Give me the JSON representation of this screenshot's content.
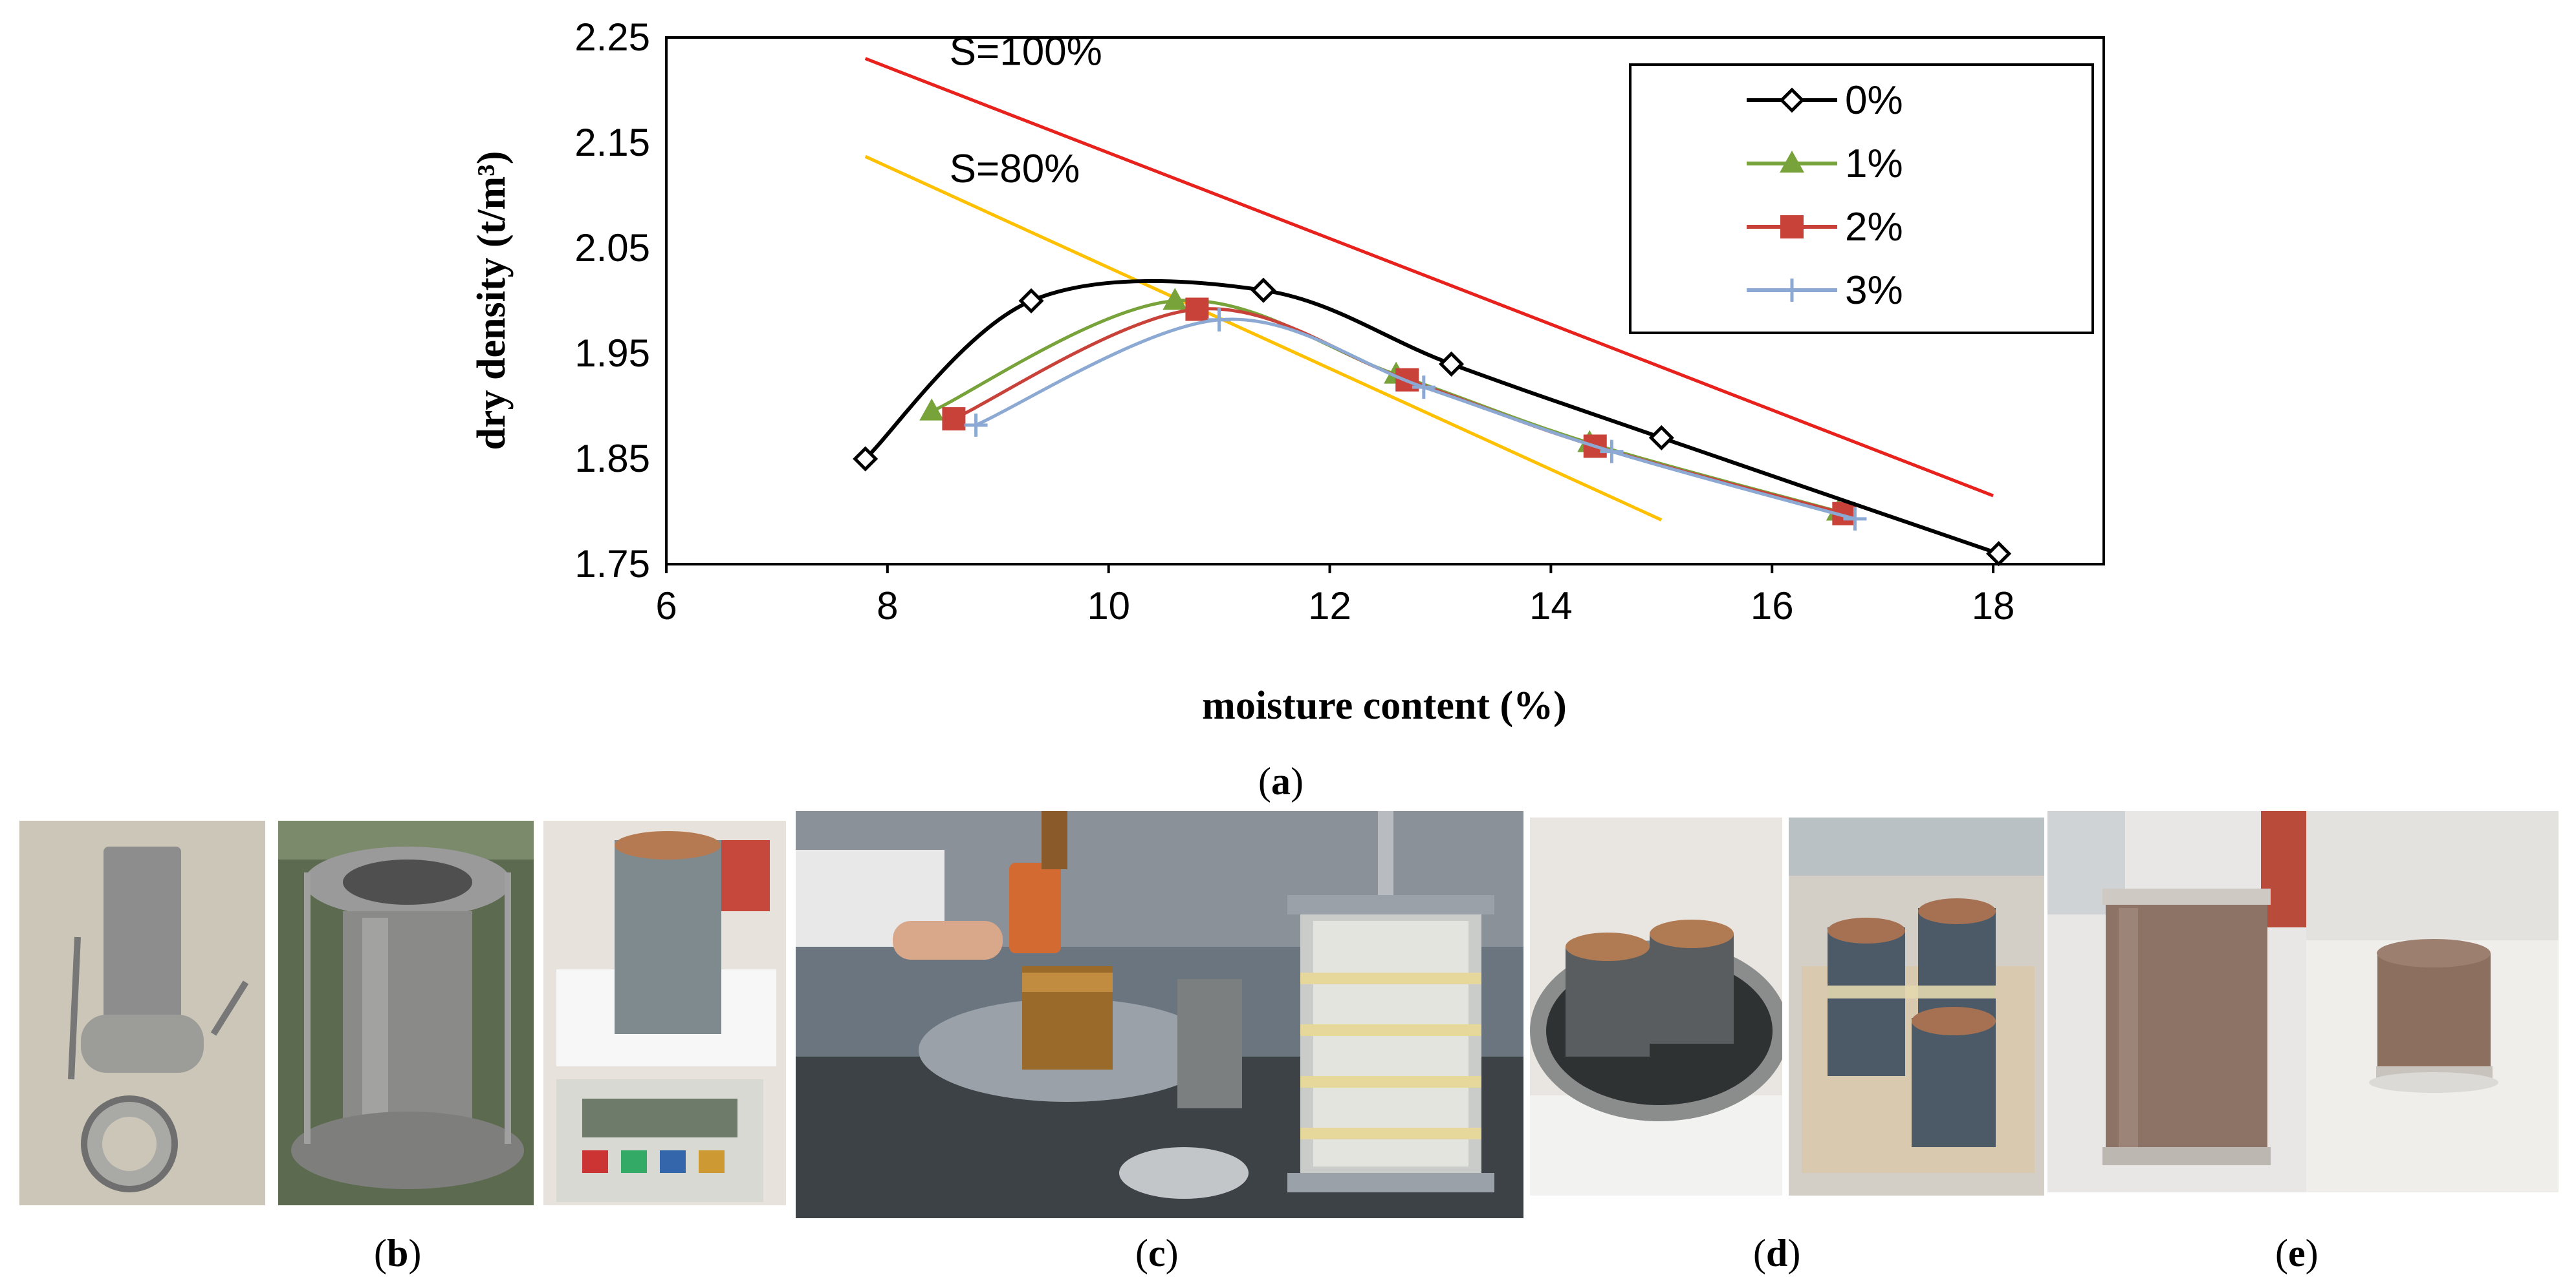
{
  "chart_data": {
    "type": "line",
    "xlabel": "moisture content (%)",
    "ylabel": "dry density (t/m³)",
    "xlim": [
      6,
      19
    ],
    "ylim": [
      1.75,
      2.25
    ],
    "xticks": [
      6,
      8,
      10,
      12,
      14,
      16,
      18
    ],
    "yticks": [
      1.75,
      1.85,
      1.95,
      2.05,
      2.15,
      2.25
    ],
    "legend_position": "top-right",
    "series": [
      {
        "name": "0%",
        "color": "#000000",
        "marker": "diamond",
        "points": [
          [
            7.8,
            1.85
          ],
          [
            9.3,
            2.0
          ],
          [
            11.4,
            2.01
          ],
          [
            13.1,
            1.94
          ],
          [
            15.0,
            1.87
          ],
          [
            18.05,
            1.76
          ]
        ]
      },
      {
        "name": "1%",
        "color": "#77a33a",
        "marker": "triangle",
        "points": [
          [
            8.4,
            1.895
          ],
          [
            10.6,
            2.0
          ],
          [
            12.6,
            1.93
          ],
          [
            14.35,
            1.865
          ],
          [
            16.6,
            1.8
          ]
        ]
      },
      {
        "name": "2%",
        "color": "#c9423a",
        "marker": "square",
        "points": [
          [
            8.6,
            1.888
          ],
          [
            10.8,
            1.992
          ],
          [
            12.7,
            1.925
          ],
          [
            14.4,
            1.862
          ],
          [
            16.65,
            1.798
          ]
        ]
      },
      {
        "name": "3%",
        "color": "#8ba9d3",
        "marker": "plus",
        "points": [
          [
            8.8,
            1.882
          ],
          [
            11.0,
            1.982
          ],
          [
            12.85,
            1.918
          ],
          [
            14.55,
            1.857
          ],
          [
            16.75,
            1.793
          ]
        ]
      }
    ],
    "reference_lines": [
      {
        "label": "S=100%",
        "color": "#e8211c",
        "points": [
          [
            7.8,
            2.23
          ],
          [
            18.0,
            1.815
          ]
        ]
      },
      {
        "label": "S=80%",
        "color": "#ffc000",
        "points": [
          [
            7.8,
            2.137
          ],
          [
            15.0,
            1.792
          ]
        ]
      }
    ]
  },
  "captions": {
    "a": "a",
    "b": "b",
    "c": "c",
    "d": "d",
    "e": "e"
  }
}
